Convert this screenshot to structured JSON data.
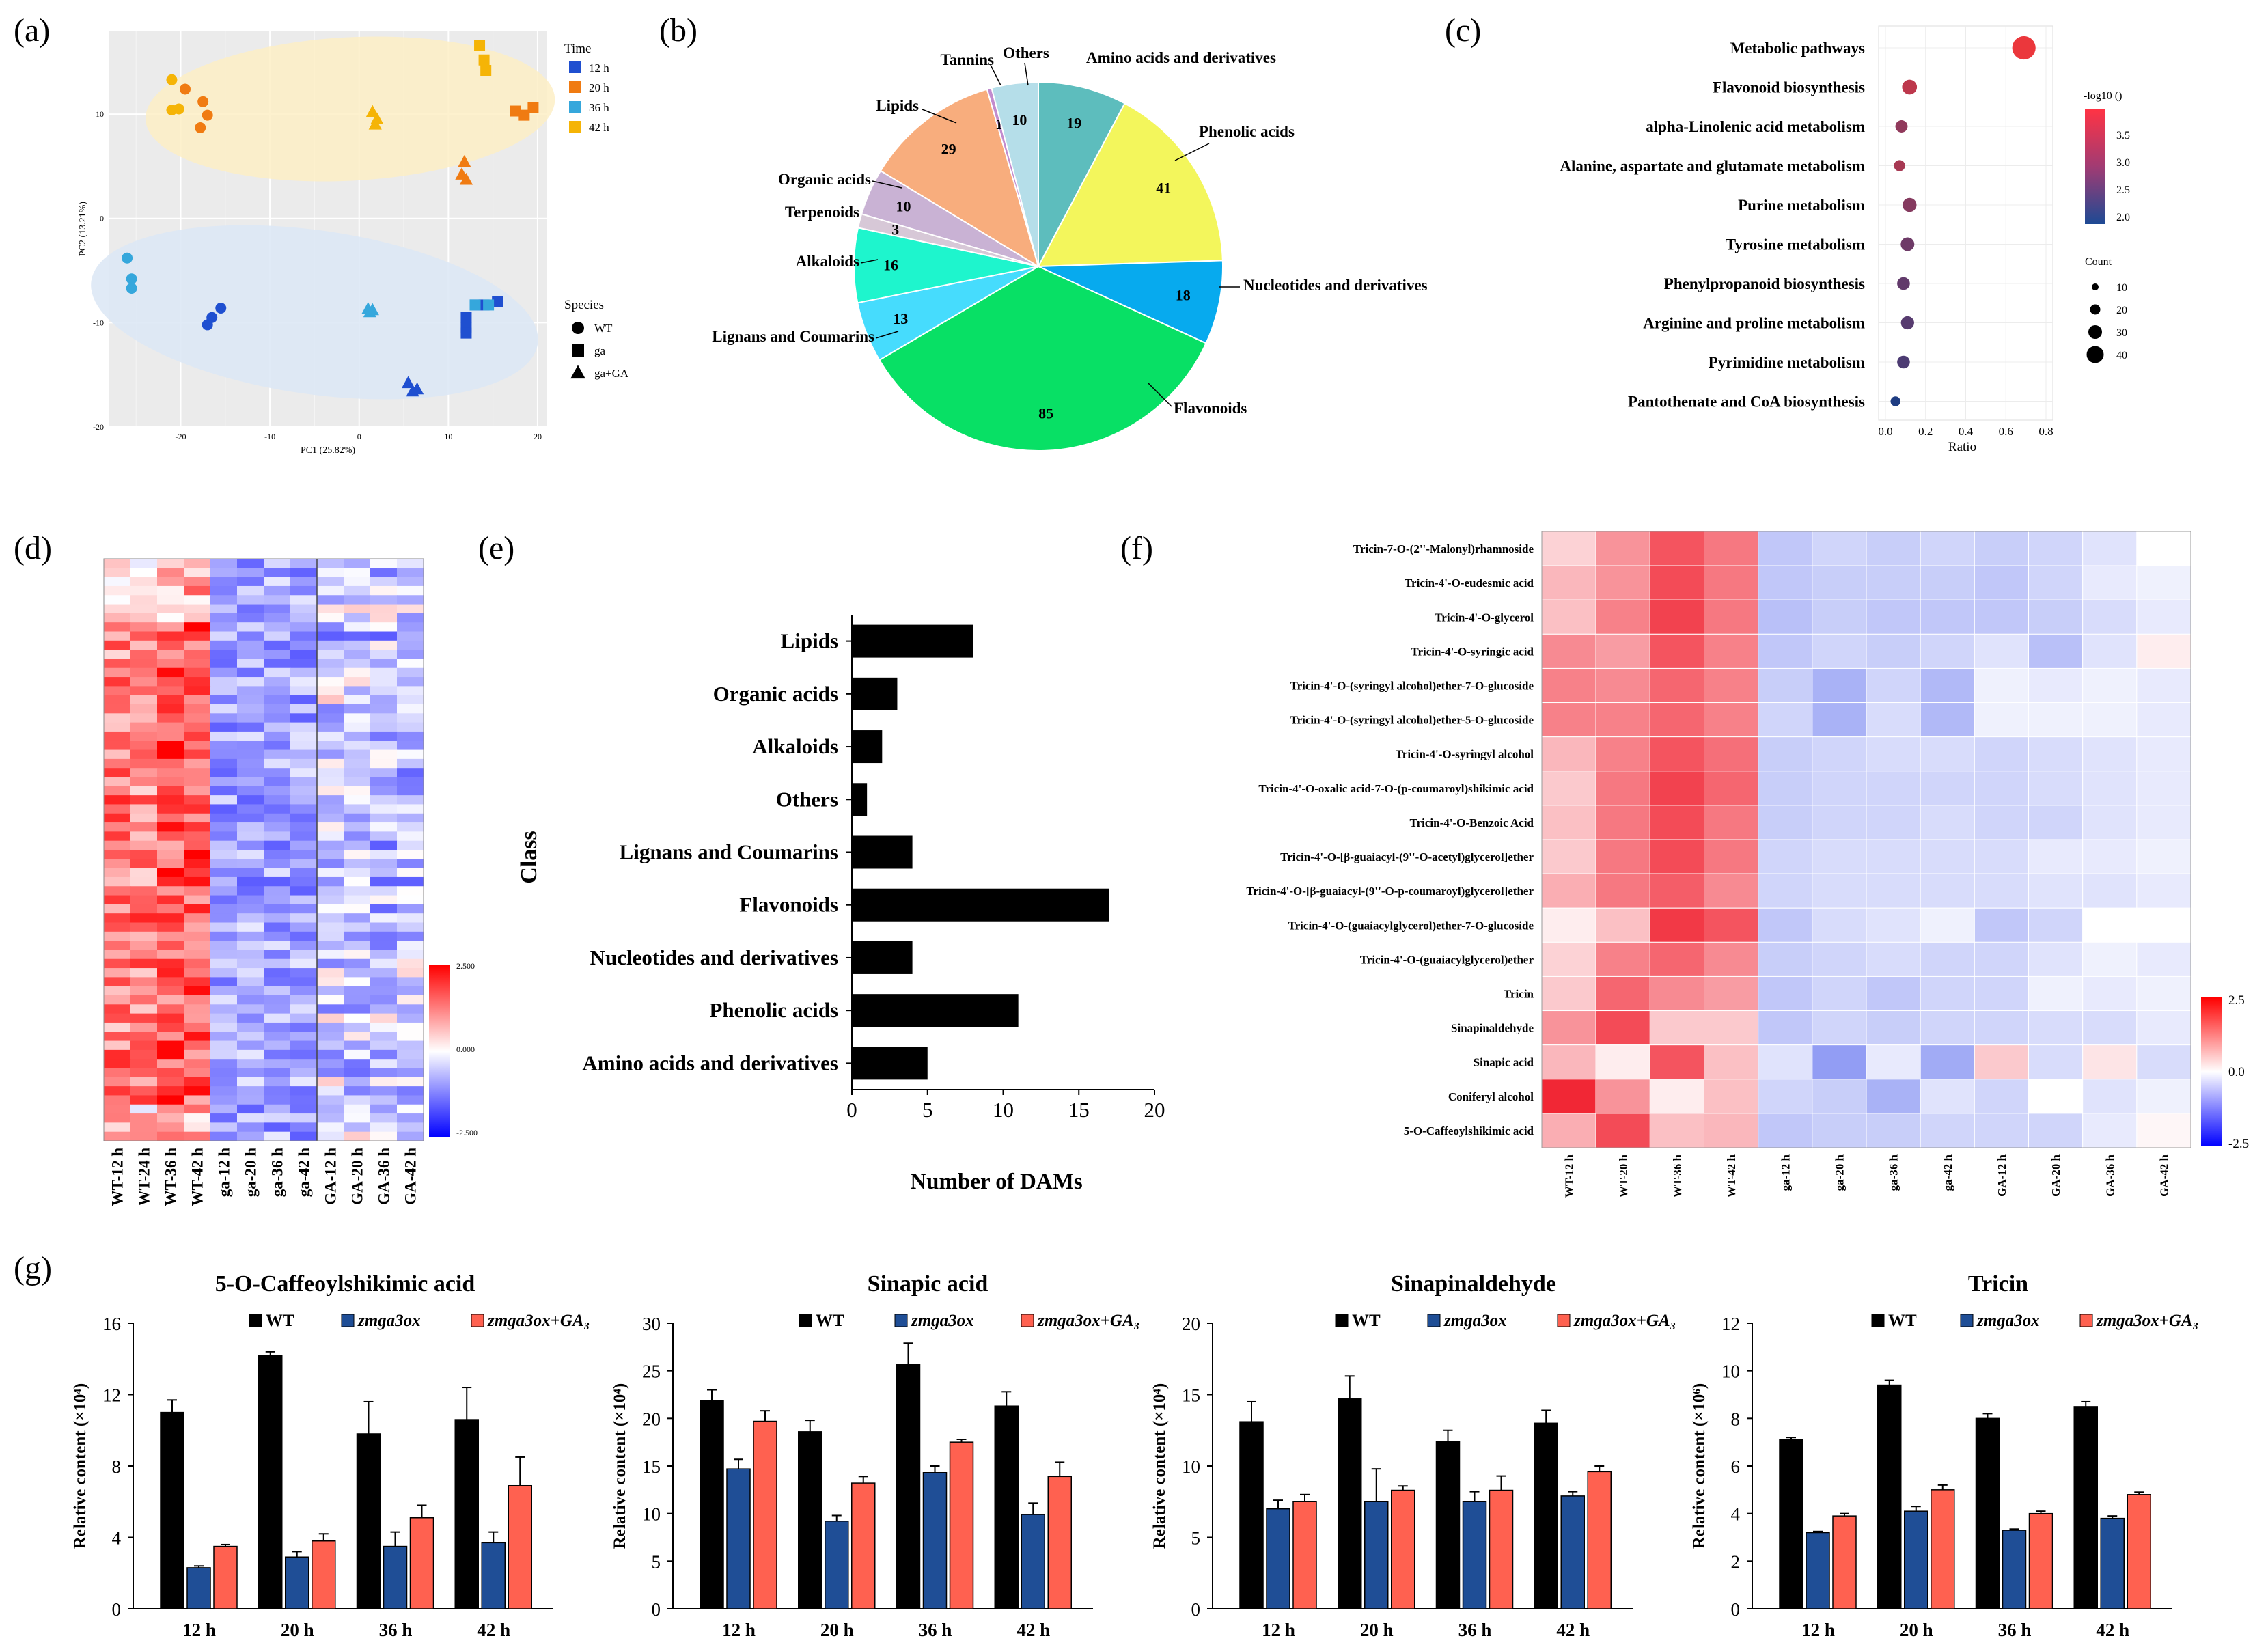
{
  "colors": {
    "wt": "#000000",
    "ga": "#1f4e96",
    "gaGA": "#ff6150",
    "t12": "#1f4fd0",
    "t20": "#f07b12",
    "t36": "#35a7dc",
    "t42": "#f5b406",
    "ellipse_top": "#fdefc5",
    "ellipse_bottom": "#dde8f5"
  },
  "panel_labels": {
    "a": "(a)",
    "b": "(b)",
    "c": "(c)",
    "d": "(d)",
    "e": "(e)",
    "f": "(f)",
    "g": "(g)"
  },
  "chart_data": [
    {
      "id": "a",
      "type": "scatter",
      "xlabel": "PC1 (25.82%)",
      "ylabel": "PC2 (13.21%)",
      "xlim": [
        -28,
        21
      ],
      "ylim": [
        -20,
        18
      ],
      "xticks": [
        -20,
        -10,
        0,
        10,
        20
      ],
      "yticks": [
        10,
        0,
        -10,
        -20
      ],
      "legend_time": {
        "title": "Time",
        "entries": [
          "12 h",
          "20 h",
          "36 h",
          "42 h"
        ]
      },
      "legend_species": {
        "title": "Species",
        "entries": [
          "WT",
          "ga",
          "ga+GA"
        ]
      },
      "series": [
        {
          "name": "WT 12 h",
          "time": 0,
          "shape": "circle",
          "points": [
            [
              -17,
              -10.2
            ],
            [
              -16.5,
              -9.5
            ],
            [
              -15.5,
              -8.6
            ]
          ]
        },
        {
          "name": "WT 20 h",
          "time": 1,
          "shape": "circle",
          "points": [
            [
              -19.5,
              12.4
            ],
            [
              -17.5,
              11.2
            ],
            [
              -17,
              9.9
            ],
            [
              -17.8,
              8.7
            ]
          ]
        },
        {
          "name": "WT 36 h",
          "time": 2,
          "shape": "circle",
          "points": [
            [
              -26,
              -3.8
            ],
            [
              -25.5,
              -5.8
            ],
            [
              -25.5,
              -6.7
            ]
          ]
        },
        {
          "name": "WT 42 h",
          "time": 3,
          "shape": "circle",
          "points": [
            [
              -21,
              13.3
            ],
            [
              -21,
              10.4
            ],
            [
              -20.2,
              10.5
            ]
          ]
        },
        {
          "name": "ga 12 h",
          "time": 0,
          "shape": "square",
          "points": [
            [
              12,
              -9.5
            ],
            [
              12,
              -10.5
            ],
            [
              12,
              -11
            ],
            [
              13,
              -8.3
            ],
            [
              14,
              -8.3
            ],
            [
              15.5,
              -8
            ]
          ]
        },
        {
          "name": "ga 20 h",
          "time": 1,
          "shape": "square",
          "points": [
            [
              17.5,
              10.3
            ],
            [
              18.5,
              9.9
            ],
            [
              19.5,
              10.6
            ]
          ]
        },
        {
          "name": "ga 36 h",
          "time": 2,
          "shape": "square",
          "points": [
            [
              13,
              -8.3
            ],
            [
              14.5,
              -8.3
            ]
          ]
        },
        {
          "name": "ga 42 h",
          "time": 3,
          "shape": "square",
          "points": [
            [
              13.5,
              16.6
            ],
            [
              14,
              15.2
            ],
            [
              14.2,
              14.2
            ]
          ]
        },
        {
          "name": "ga+GA 12 h",
          "time": 0,
          "shape": "triangle",
          "points": [
            [
              5.5,
              -15.8
            ],
            [
              6,
              -16.6
            ],
            [
              6.5,
              -16.4
            ]
          ]
        },
        {
          "name": "ga+GA 20 h",
          "time": 1,
          "shape": "triangle",
          "points": [
            [
              11.5,
              4.2
            ],
            [
              11.8,
              5.4
            ],
            [
              12,
              3.7
            ]
          ]
        },
        {
          "name": "ga+GA 36 h",
          "time": 2,
          "shape": "triangle",
          "points": [
            [
              1,
              -8.7
            ],
            [
              1.2,
              -9.0
            ],
            [
              1.5,
              -8.8
            ]
          ]
        },
        {
          "name": "ga+GA 42 h",
          "time": 3,
          "shape": "triangle",
          "points": [
            [
              1.5,
              10.2
            ],
            [
              2,
              9.5
            ],
            [
              1.8,
              9.0
            ]
          ]
        }
      ]
    },
    {
      "id": "b",
      "type": "pie",
      "slices": [
        {
          "label": "Amino acids and derivatives",
          "value": 19,
          "color": "#5dbdbd"
        },
        {
          "label": "Phenolic acids",
          "value": 41,
          "color": "#f3f65c"
        },
        {
          "label": "Nucleotides and derivatives",
          "value": 18,
          "color": "#07aaee"
        },
        {
          "label": "Flavonoids",
          "value": 85,
          "color": "#08e065"
        },
        {
          "label": "Lignans and Coumarins",
          "value": 13,
          "color": "#46dcfd"
        },
        {
          "label": "Alkaloids",
          "value": 16,
          "color": "#1ef5cd"
        },
        {
          "label": "Terpenoids",
          "value": 3,
          "color": "#d7c8d7"
        },
        {
          "label": "Organic acids",
          "value": 10,
          "color": "#c9b2d4"
        },
        {
          "label": "Lipids",
          "value": 29,
          "color": "#f8ad7d"
        },
        {
          "label": "Tannins",
          "value": 1,
          "color": "#c28cce"
        },
        {
          "label": "Others",
          "value": 10,
          "color": "#b5dee9"
        }
      ]
    },
    {
      "id": "c",
      "type": "scatter",
      "xlabel": "Ratio",
      "xlim": [
        0,
        0.8
      ],
      "xticks": [
        "0.0",
        "0.2",
        "0.4",
        "0.6",
        "0.8"
      ],
      "pathways": [
        {
          "name": "Metabolic pathways",
          "ratio": 0.69,
          "count": 45,
          "log": 3.8
        },
        {
          "name": "Flavonoid biosynthesis",
          "ratio": 0.12,
          "count": 14,
          "log": 3.4
        },
        {
          "name": "alpha-Linolenic acid metabolism",
          "ratio": 0.08,
          "count": 8,
          "log": 3.0
        },
        {
          "name": "Alanine, aspartate and glutamate metabolism",
          "ratio": 0.07,
          "count": 6,
          "log": 3.2
        },
        {
          "name": "Purine metabolism",
          "ratio": 0.12,
          "count": 12,
          "log": 2.9
        },
        {
          "name": "Tyrosine metabolism",
          "ratio": 0.11,
          "count": 11,
          "log": 2.7
        },
        {
          "name": "Phenylpropanoid biosynthesis",
          "ratio": 0.09,
          "count": 9,
          "log": 2.6
        },
        {
          "name": "Arginine and proline metabolism",
          "ratio": 0.11,
          "count": 10,
          "log": 2.5
        },
        {
          "name": "Pyrimidine metabolism",
          "ratio": 0.09,
          "count": 9,
          "log": 2.4
        },
        {
          "name": "Pantothenate and CoA biosynthesis",
          "ratio": 0.05,
          "count": 4,
          "log": 2.0
        }
      ],
      "legend_color_title": "-log10 ()",
      "legend_color_ticks": [
        "3.5",
        "3.0",
        "2.5",
        "2.0"
      ],
      "legend_size_title": "Count",
      "legend_size_ticks": [
        "10",
        "20",
        "30",
        "40"
      ]
    },
    {
      "id": "d",
      "type": "heatmap",
      "columns": [
        "WT-12 h",
        "WT-24 h",
        "WT-36 h",
        "WT-42 h",
        "ga-12 h",
        "ga-20 h",
        "ga-36 h",
        "ga-42 h",
        "GA-12 h",
        "GA-20 h",
        "GA-36 h",
        "GA-42 h"
      ],
      "rows": 64,
      "scale_ticks": [
        "2.500",
        "0.000",
        "-2.500"
      ]
    },
    {
      "id": "e",
      "type": "bar",
      "orientation": "horizontal",
      "ylabel": "Class",
      "xlabel": "Number of DAMs",
      "xlim": [
        0,
        20
      ],
      "xticks": [
        "0",
        "5",
        "10",
        "15",
        "20"
      ],
      "categories": [
        "Lipids",
        "Organic acids",
        "Alkaloids",
        "Others",
        "Lignans and Coumarins",
        "Flavonoids",
        "Nucleotides and derivatives",
        "Phenolic acids",
        "Amino acids and derivatives"
      ],
      "values": [
        8,
        3,
        2,
        1,
        4,
        17,
        4,
        11,
        5
      ]
    },
    {
      "id": "f",
      "type": "heatmap",
      "columns": [
        "WT-12 h",
        "WT-20 h",
        "WT-36 h",
        "WT-42 h",
        "ga-12 h",
        "ga-20 h",
        "ga-36 h",
        "ga-42 h",
        "GA-12 h",
        "GA-20 h",
        "GA-36 h",
        "GA-42 h"
      ],
      "rows": [
        "Tricin-7-O-(2''-Malonyl)rhamnoside",
        "Tricin-4'-O-eudesmic acid",
        "Tricin-4'-O-glycerol",
        "Tricin-4'-O-syringic acid",
        "Tricin-4'-O-(syringyl alcohol)ether-7-O-glucoside",
        "Tricin-4'-O-(syringyl alcohol)ether-5-O-glucoside",
        "Tricin-4'-O-syringyl alcohol",
        "Tricin-4'-O-oxalic acid-7-O-(p-coumaroyl)shikimic acid",
        "Tricin-4'-O-Benzoic Acid",
        "Tricin-4'-O-[β-guaiacyl-(9''-O-acetyl)glycerol]ether",
        "Tricin-4'-O-[β-guaiacyl-(9''-O-p-coumaroyl)glycerol]ether",
        "Tricin-4'-O-(guaiacylglycerol)ether-7-O-glucoside",
        "Tricin-4'-O-(guaiacylglycerol)ether",
        "Tricin",
        "Sinapinaldehyde",
        "Sinapic acid",
        "Coniferyl alcohol",
        "5-O-Caffeoylshikimic acid"
      ],
      "values": [
        [
          0.5,
          1.2,
          1.9,
          1.5,
          -0.8,
          -0.6,
          -0.7,
          -0.6,
          -0.7,
          -0.6,
          -0.4,
          0.0
        ],
        [
          0.8,
          1.2,
          2.0,
          1.5,
          -0.8,
          -0.7,
          -0.7,
          -0.7,
          -0.8,
          -0.6,
          -0.3,
          -0.2
        ],
        [
          0.7,
          1.4,
          2.1,
          1.5,
          -0.9,
          -0.7,
          -0.8,
          -0.8,
          -0.8,
          -0.7,
          -0.5,
          -0.3
        ],
        [
          1.3,
          1.1,
          1.9,
          1.4,
          -0.8,
          -0.6,
          -0.7,
          -0.6,
          -0.4,
          -0.9,
          -0.4,
          0.2
        ],
        [
          1.4,
          1.3,
          1.7,
          1.4,
          -0.7,
          -1.1,
          -0.6,
          -1.0,
          -0.2,
          -0.3,
          -0.2,
          -0.3
        ],
        [
          1.4,
          1.4,
          1.7,
          1.4,
          -0.6,
          -1.1,
          -0.5,
          -1.0,
          -0.2,
          -0.2,
          -0.2,
          -0.3
        ],
        [
          0.8,
          1.4,
          1.9,
          1.6,
          -0.7,
          -0.6,
          -0.5,
          -0.5,
          -0.6,
          -0.5,
          -0.4,
          -0.3
        ],
        [
          0.6,
          1.5,
          2.1,
          1.7,
          -0.7,
          -0.6,
          -0.6,
          -0.6,
          -0.6,
          -0.5,
          -0.4,
          -0.3
        ],
        [
          0.7,
          1.5,
          2.0,
          1.5,
          -0.7,
          -0.6,
          -0.6,
          -0.5,
          -0.6,
          -0.6,
          -0.4,
          -0.3
        ],
        [
          0.6,
          1.5,
          2.0,
          1.5,
          -0.6,
          -0.5,
          -0.5,
          -0.5,
          -0.5,
          -0.3,
          -0.3,
          -0.2
        ],
        [
          0.9,
          1.5,
          1.8,
          1.3,
          -0.6,
          -0.5,
          -0.5,
          -0.5,
          -0.5,
          -0.4,
          -0.4,
          -0.3
        ],
        [
          0.2,
          0.7,
          2.2,
          1.9,
          -0.8,
          -0.5,
          -0.4,
          -0.2,
          -0.8,
          -0.6,
          0.0,
          0.0
        ],
        [
          0.5,
          1.4,
          1.7,
          1.3,
          -0.7,
          -0.6,
          -0.5,
          -0.6,
          -0.6,
          -0.4,
          -0.2,
          -0.3
        ],
        [
          0.6,
          1.7,
          1.3,
          1.1,
          -0.8,
          -0.6,
          -0.8,
          -0.6,
          -0.6,
          -0.2,
          -0.3,
          -0.2
        ],
        [
          1.2,
          2.0,
          0.6,
          0.6,
          -0.8,
          -0.6,
          -0.7,
          -0.6,
          -0.6,
          -0.5,
          -0.5,
          -0.3
        ],
        [
          0.8,
          0.2,
          1.9,
          0.7,
          -0.4,
          -1.4,
          -0.3,
          -1.2,
          0.6,
          -0.5,
          0.3,
          -0.5
        ],
        [
          2.4,
          1.2,
          0.2,
          0.7,
          -0.6,
          -0.7,
          -1.1,
          -0.4,
          -0.6,
          0.0,
          -0.4,
          -0.2
        ],
        [
          0.9,
          2.0,
          0.7,
          0.8,
          -0.8,
          -0.7,
          -0.7,
          -0.6,
          -0.6,
          -0.6,
          -0.3,
          0.1
        ]
      ],
      "scale_ticks": [
        "2.5",
        "0.0",
        "-2.5"
      ]
    },
    {
      "id": "g1",
      "type": "bar",
      "title": "5-O-Caffeoylshikimic acid",
      "ylabel": "Relative content (×10⁴)",
      "ylim": [
        0,
        16
      ],
      "yticks": [
        "0",
        "4",
        "8",
        "12",
        "16"
      ],
      "categories": [
        "12 h",
        "20 h",
        "36 h",
        "42 h"
      ],
      "series": [
        {
          "name": "WT",
          "values": [
            11,
            14.2,
            9.8,
            10.6
          ],
          "errors": [
            0.7,
            0.2,
            1.8,
            1.8
          ]
        },
        {
          "name": "zmga3ox",
          "values": [
            2.3,
            2.9,
            3.5,
            3.7
          ],
          "errors": [
            0.1,
            0.3,
            0.8,
            0.6
          ]
        },
        {
          "name": "zmga3ox+GA₃",
          "values": [
            3.5,
            3.8,
            5.1,
            6.9
          ],
          "errors": [
            0.1,
            0.4,
            0.7,
            1.6
          ]
        }
      ]
    },
    {
      "id": "g2",
      "type": "bar",
      "title": "Sinapic acid",
      "ylabel": "Relative content (×10⁴)",
      "ylim": [
        0,
        30
      ],
      "yticks": [
        "0",
        "5",
        "10",
        "15",
        "20",
        "25",
        "30"
      ],
      "categories": [
        "12 h",
        "20 h",
        "36 h",
        "42 h"
      ],
      "series": [
        {
          "name": "WT",
          "values": [
            21.9,
            18.6,
            25.7,
            21.3
          ],
          "errors": [
            1.1,
            1.2,
            2.2,
            1.5
          ]
        },
        {
          "name": "zmga3ox",
          "values": [
            14.7,
            9.2,
            14.3,
            9.9
          ],
          "errors": [
            1.0,
            0.6,
            0.7,
            1.2
          ]
        },
        {
          "name": "zmga3ox+GA₃",
          "values": [
            19.7,
            13.2,
            17.5,
            13.9
          ],
          "errors": [
            1.1,
            0.7,
            0.3,
            1.5
          ]
        }
      ]
    },
    {
      "id": "g3",
      "type": "bar",
      "title": "Sinapinaldehyde",
      "ylabel": "Relative content (×10⁴)",
      "ylim": [
        0,
        20
      ],
      "yticks": [
        "0",
        "5",
        "10",
        "15",
        "20"
      ],
      "categories": [
        "12 h",
        "20 h",
        "36 h",
        "42 h"
      ],
      "series": [
        {
          "name": "WT",
          "values": [
            13.1,
            14.7,
            11.7,
            13.0
          ],
          "errors": [
            1.4,
            1.6,
            0.8,
            0.9
          ]
        },
        {
          "name": "zmga3ox",
          "values": [
            7.0,
            7.5,
            7.5,
            7.9
          ],
          "errors": [
            0.6,
            2.3,
            0.7,
            0.3
          ]
        },
        {
          "name": "zmga3ox+GA₃",
          "values": [
            7.5,
            8.3,
            8.3,
            9.6
          ],
          "errors": [
            0.5,
            0.3,
            1.0,
            0.4
          ]
        }
      ]
    },
    {
      "id": "g4",
      "type": "bar",
      "title": "Tricin",
      "ylabel": "Relative content (×10⁶)",
      "ylim": [
        0,
        12
      ],
      "yticks": [
        "0",
        "2",
        "4",
        "6",
        "8",
        "10",
        "12"
      ],
      "categories": [
        "12 h",
        "20 h",
        "36 h",
        "42 h"
      ],
      "series": [
        {
          "name": "WT",
          "values": [
            7.1,
            9.4,
            8.0,
            8.5
          ],
          "errors": [
            0.1,
            0.2,
            0.2,
            0.2
          ]
        },
        {
          "name": "zmga3ox",
          "values": [
            3.2,
            4.1,
            3.3,
            3.8
          ],
          "errors": [
            0.05,
            0.2,
            0.05,
            0.1
          ]
        },
        {
          "name": "zmga3ox+GA₃",
          "values": [
            3.9,
            5.0,
            4.0,
            4.8
          ],
          "errors": [
            0.1,
            0.2,
            0.1,
            0.1
          ]
        }
      ]
    }
  ]
}
